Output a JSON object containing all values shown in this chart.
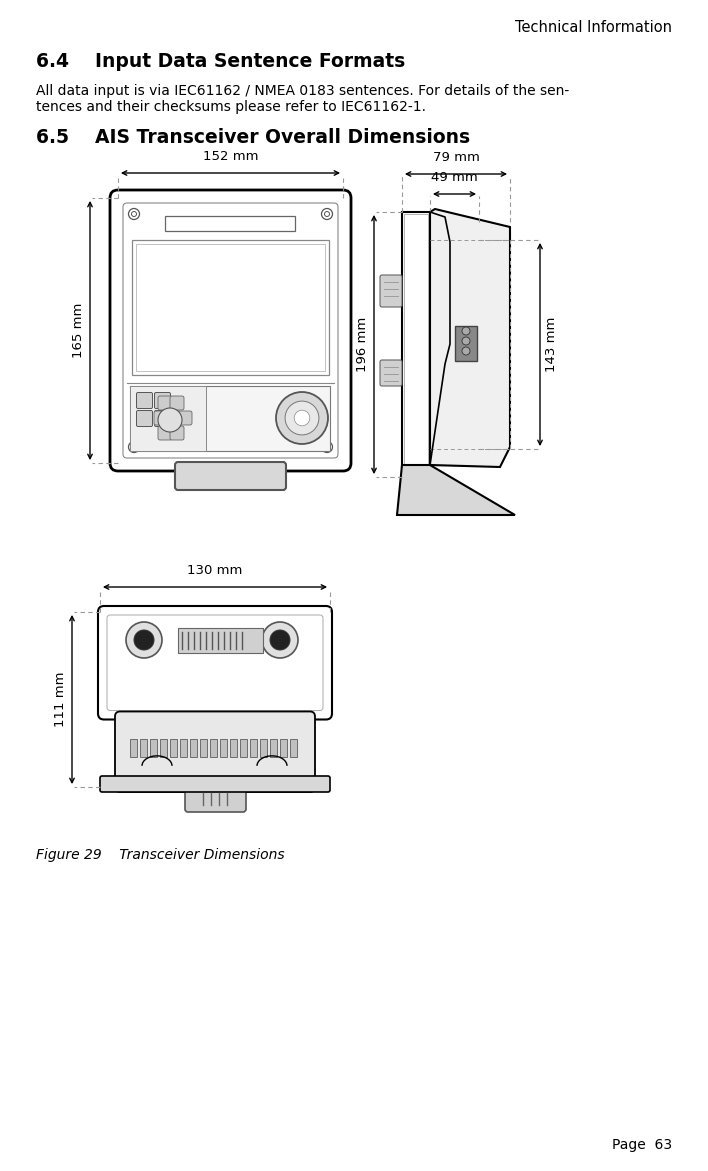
{
  "page_header": "Technical Information",
  "section_6_4_title": "6.4    Input Data Sentence Formats",
  "section_6_4_line1": "All data input is via IEC61162 / NMEA 0183 sentences. For details of the sen-",
  "section_6_4_line2": "tences and their checksums please refer to IEC61162-1.",
  "section_6_5_title": "6.5    AIS Transceiver Overall Dimensions",
  "fig_caption": "Figure 29    Transceiver Dimensions",
  "page_number": "Page  63",
  "dim_front_width": "152 mm",
  "dim_front_height": "165 mm",
  "dim_side_total_width": "79 mm",
  "dim_side_inner_width": "49 mm",
  "dim_side_total_height": "196 mm",
  "dim_side_inner_height": "143 mm",
  "dim_top_width": "130 mm",
  "dim_top_height": "111 mm",
  "bg_color": "#ffffff",
  "text_color": "#000000",
  "line_color": "#000000",
  "dotted_color": "#999999"
}
